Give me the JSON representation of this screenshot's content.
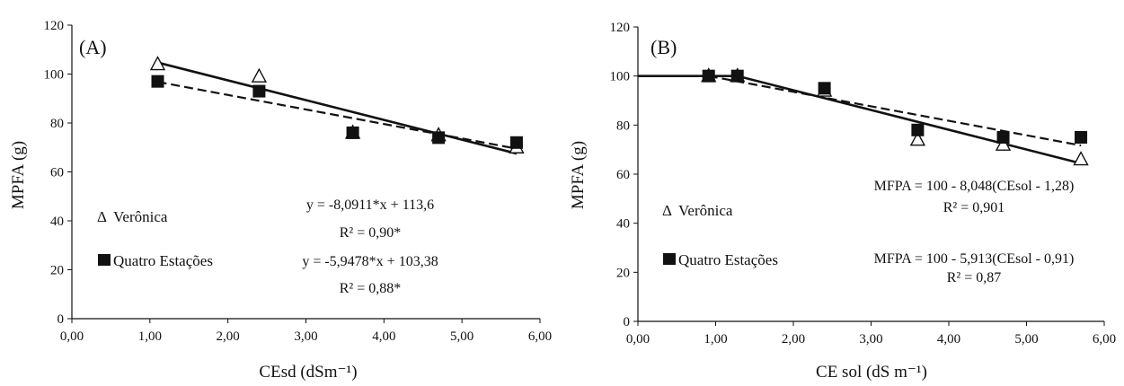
{
  "chart_data": [
    {
      "type": "scatter",
      "panel_label": "(A)",
      "xlabel": "CEsd (dSm⁻¹)",
      "ylabel": "MPFA (g)",
      "xlim": [
        0,
        6
      ],
      "ylim": [
        0,
        120
      ],
      "x_tick_labels": [
        "0,00",
        "1,00",
        "2,00",
        "3,00",
        "4,00",
        "5,00",
        "6,00"
      ],
      "y_tick_labels": [
        "0",
        "20",
        "40",
        "60",
        "80",
        "100",
        "120"
      ],
      "x_ticks": [
        0,
        1,
        2,
        3,
        4,
        5,
        6
      ],
      "y_ticks": [
        0,
        20,
        40,
        60,
        80,
        100,
        120
      ],
      "series": [
        {
          "name": "Verônica",
          "marker": "triangle",
          "color": "#111111",
          "x": [
            1.1,
            2.4,
            3.6,
            4.7,
            5.7
          ],
          "y": [
            104,
            99,
            76,
            75,
            70
          ],
          "line": {
            "style": "solid",
            "x": [
              1.1,
              5.7
            ],
            "y": [
              104.7,
              67.5
            ]
          }
        },
        {
          "name": "Quatro Estações",
          "marker": "square",
          "color": "#111111",
          "x": [
            1.1,
            2.4,
            3.6,
            4.7,
            5.7
          ],
          "y": [
            97,
            93,
            76,
            74,
            72
          ],
          "line": {
            "style": "dashed",
            "x": [
              1.1,
              5.7
            ],
            "y": [
              96.8,
              69.5
            ]
          }
        }
      ],
      "legend": [
        "Verônica",
        "Quatro Estações"
      ],
      "annotations": [
        "y = -8,0911*x + 113,6",
        "R² = 0,90*",
        "y = -5,9478*x + 103,38",
        "R² = 0,88*"
      ],
      "grid": false,
      "legend_position": "bottom-left"
    },
    {
      "type": "scatter",
      "panel_label": "(B)",
      "xlabel": "CE sol (dS m⁻¹)",
      "ylabel": "MPFA (g)",
      "xlim": [
        0,
        6
      ],
      "ylim": [
        0,
        120
      ],
      "x_tick_labels": [
        "0,00",
        "1,00",
        "2,00",
        "3,00",
        "4,00",
        "5,00",
        "6,00"
      ],
      "y_tick_labels": [
        "0",
        "20",
        "40",
        "60",
        "80",
        "100",
        "120"
      ],
      "x_ticks": [
        0,
        1,
        2,
        3,
        4,
        5,
        6
      ],
      "y_ticks": [
        0,
        20,
        40,
        60,
        80,
        100,
        120
      ],
      "series": [
        {
          "name": "Verônica",
          "marker": "triangle",
          "color": "#111111",
          "x": [
            0.91,
            1.28,
            2.4,
            3.6,
            4.7,
            5.7
          ],
          "y": [
            100,
            100,
            94,
            74,
            72,
            66
          ],
          "line": {
            "style": "solid",
            "x": [
              0,
              1.28,
              5.7
            ],
            "y": [
              100,
              100,
              64.4
            ]
          }
        },
        {
          "name": "Quatro Estações",
          "marker": "square",
          "color": "#111111",
          "x": [
            0.91,
            1.28,
            2.4,
            3.6,
            4.7,
            5.7
          ],
          "y": [
            100,
            100,
            95,
            78,
            75,
            75
          ],
          "line": {
            "style": "dashed",
            "x": [
              0.91,
              5.7
            ],
            "y": [
              100,
              71.7
            ]
          }
        }
      ],
      "legend": [
        "Verônica",
        "Quatro Estações"
      ],
      "annotations": [
        "MFPA = 100 - 8,048(CEsol - 1,28)",
        "R² = 0,901",
        "MFPA = 100 - 5,913(CEsol - 0,91)",
        "R² = 0,87"
      ],
      "grid": false,
      "legend_position": "bottom-left"
    }
  ]
}
